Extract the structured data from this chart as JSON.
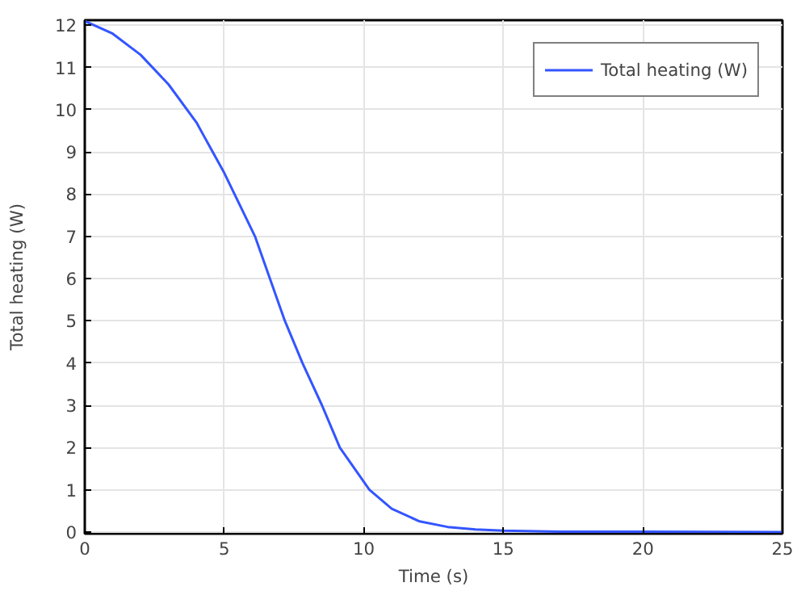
{
  "chart_data": {
    "type": "line",
    "xlabel": "Time (s)",
    "ylabel": "Total heating (W)",
    "xlim": [
      0,
      25
    ],
    "ylim": [
      -0.04,
      12.12
    ],
    "xticks": [
      0,
      5,
      10,
      15,
      20,
      25
    ],
    "yticks": [
      0,
      1,
      2,
      3,
      4,
      5,
      6,
      7,
      8,
      9,
      10,
      11,
      12
    ],
    "grid": true,
    "legend": "top right",
    "line_style": "solid",
    "series": [
      {
        "name": "Total heating (W)",
        "color": "#3355ff",
        "x": [
          0,
          1,
          2,
          3,
          4,
          5,
          6.1,
          7.17,
          7.8,
          8.5,
          9.14,
          10.2,
          11,
          12,
          13,
          14,
          15,
          17,
          20,
          25
        ],
        "values": [
          12.1,
          11.8,
          11.3,
          10.6,
          9.7,
          8.5,
          7,
          5,
          4,
          3,
          2,
          1,
          0.55,
          0.25,
          0.12,
          0.06,
          0.03,
          0.01,
          0.01,
          0
        ]
      }
    ]
  }
}
